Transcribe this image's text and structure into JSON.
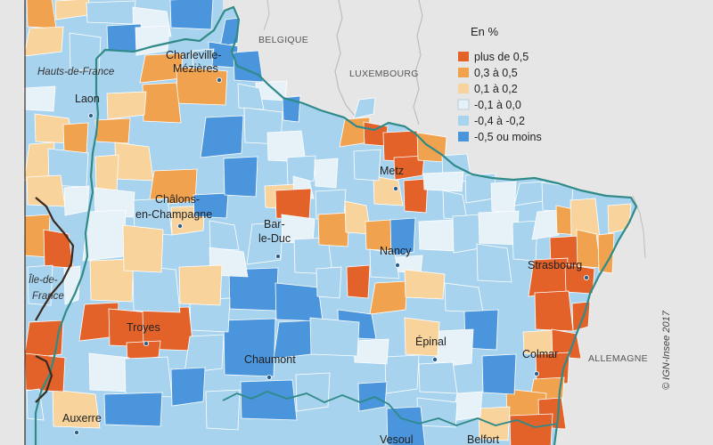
{
  "legend": {
    "title": "En %",
    "classes": [
      {
        "label": "plus de 0,5",
        "color": "#e2622a"
      },
      {
        "label": "0,3 à 0,5",
        "color": "#f0a24e"
      },
      {
        "label": "0,1 à 0,2",
        "color": "#f8d39c"
      },
      {
        "label": "-0,1 à 0,0",
        "color": "#e7f1f8"
      },
      {
        "label": "-0,4 à -0,2",
        "color": "#a8d3ef"
      },
      {
        "label": "-0,5 ou moins",
        "color": "#4a95dc"
      }
    ]
  },
  "cities": [
    {
      "name": "Charleville-",
      "name2": "Mézières"
    },
    {
      "name": "Laon"
    },
    {
      "name": "Châlons-",
      "name2": "en-Champagne"
    },
    {
      "name": "Bar-",
      "name2": "le-Duc"
    },
    {
      "name": "Metz"
    },
    {
      "name": "Nancy"
    },
    {
      "name": "Strasbourg"
    },
    {
      "name": "Troyes"
    },
    {
      "name": "Chaumont"
    },
    {
      "name": "Épinal"
    },
    {
      "name": "Colmar"
    },
    {
      "name": "Auxerre"
    },
    {
      "name": "Vesoul"
    },
    {
      "name": "Belfort"
    }
  ],
  "countries": {
    "belgique": "BELGIQUE",
    "luxembourg": "LUXEMBOURG",
    "allemagne": "ALLEMAGNE"
  },
  "regions": {
    "hauts_de_france": "Hauts-de-France",
    "ile_de_france_1": "Île-de-",
    "ile_de_france_2": "France"
  },
  "credit": "© IGN-Insee 2017",
  "colors": {
    "background_foreign": "#e6e6e6",
    "neighbor_outline": "#bdbdbd",
    "region_border": "#2f8a88",
    "dark_border": "#3a2a20",
    "city_dot": "#2c5f8a"
  }
}
